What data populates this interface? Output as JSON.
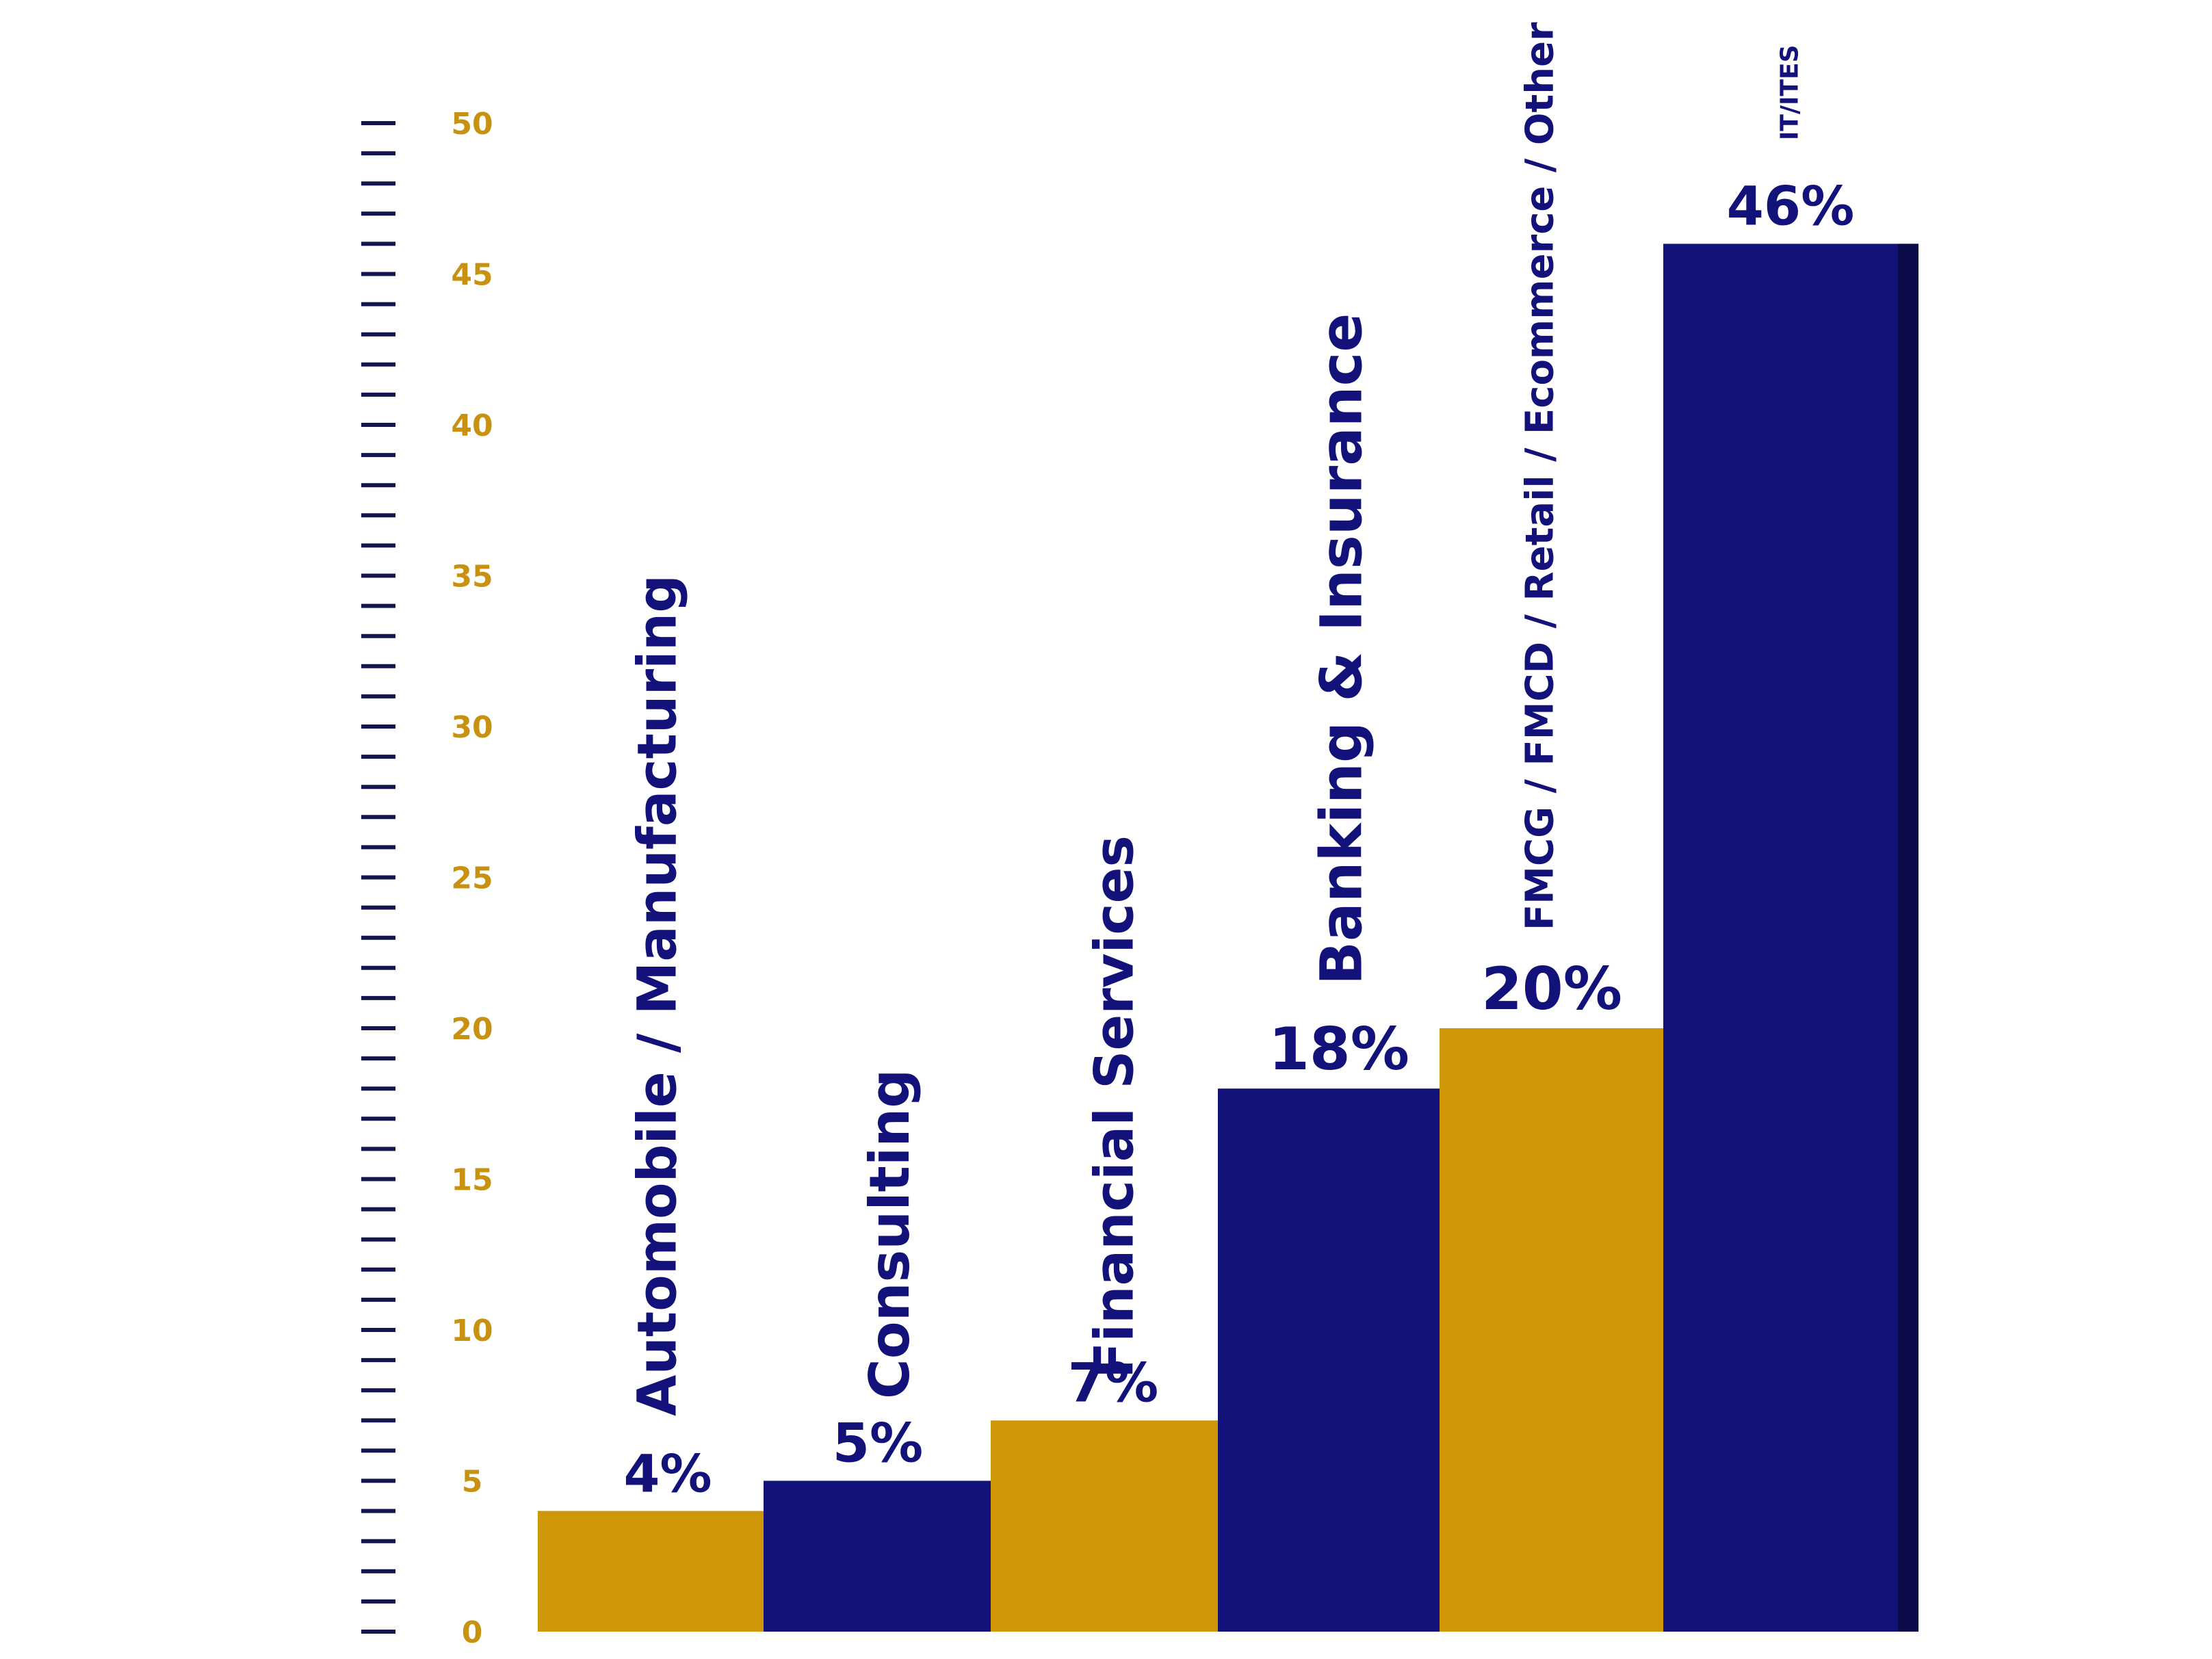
{
  "colors": {
    "navy": "#12127a",
    "navy_shadow": "#0b0b4a",
    "gold": "#cf9708",
    "gold_shadow": "#a97b06",
    "tick_navy": "#14144f",
    "tick_label_gold": "#c89210",
    "background": "#ffffff"
  },
  "chart_data": {
    "type": "bar",
    "title": "",
    "xlabel": "",
    "ylabel": "",
    "ylim": [
      0,
      50
    ],
    "y_ticks": [
      0,
      5,
      10,
      15,
      20,
      25,
      30,
      35,
      40,
      45,
      50
    ],
    "y_tick_labels": [
      "0",
      "5",
      "10",
      "15",
      "20",
      "25",
      "30",
      "35",
      "40",
      "45",
      "50"
    ],
    "minor_tick_step": 1,
    "grid": false,
    "legend": "none",
    "categories": [
      "Automobile / Manufacturing",
      "Consulting",
      "Financial Services",
      "Banking & Insurance",
      "FMCG / FMCD / Retail / Ecommerce / Other",
      "IT/ITES"
    ],
    "values": [
      4,
      5,
      7,
      18,
      20,
      46
    ],
    "value_labels": [
      "4%",
      "5%",
      "7%",
      "18%",
      "20%",
      "46%"
    ],
    "bar_colors": [
      "gold",
      "navy",
      "gold",
      "navy",
      "gold",
      "navy"
    ]
  }
}
